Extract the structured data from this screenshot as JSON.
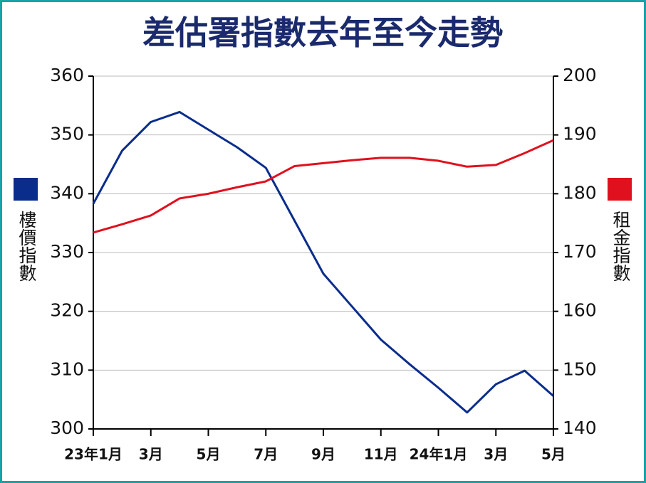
{
  "chart_data": {
    "type": "line",
    "title": "差估署指數去年至今走勢",
    "categories": [
      "23年1月",
      null,
      "3月",
      null,
      "5月",
      null,
      "7月",
      null,
      "9月",
      null,
      "11月",
      null,
      "24年1月",
      null,
      "3月",
      null,
      "5月"
    ],
    "series": [
      {
        "name": "樓價指數",
        "color": "#0a2d8c",
        "values": [
          338.3,
          347.3,
          352.2,
          353.9,
          350.9,
          347.9,
          344.4,
          335.4,
          326.4,
          320.8,
          315.2,
          311.0,
          307.0,
          302.8,
          307.6,
          309.9,
          305.6
        ]
      },
      {
        "name": "租金指數",
        "color": "#e0101e",
        "axis": "y2",
        "values": [
          173.4,
          174.8,
          176.3,
          179.2,
          180.0,
          181.1,
          182.1,
          184.7,
          185.2,
          185.7,
          186.1,
          186.1,
          185.6,
          184.6,
          184.9,
          186.9,
          189.1
        ]
      }
    ],
    "ylim": [
      300,
      360
    ],
    "yticks": [
      300,
      310,
      320,
      330,
      340,
      350,
      360
    ],
    "y2lim": [
      140,
      200
    ],
    "y2ticks": [
      140,
      150,
      160,
      170,
      180,
      190,
      200
    ],
    "grid": true
  }
}
